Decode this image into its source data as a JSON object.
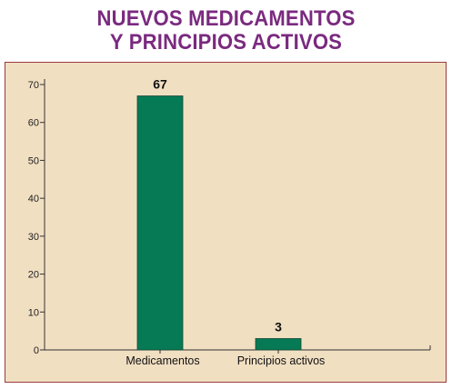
{
  "chart_data": {
    "type": "bar",
    "title": [
      "NUEVOS MEDICAMENTOS",
      "Y PRINCIPIOS ACTIVOS"
    ],
    "categories": [
      "Medicamentos",
      "Principios activos"
    ],
    "values": [
      67,
      3
    ],
    "data_labels": [
      "67",
      "3"
    ],
    "ylim": [
      0,
      70
    ],
    "yticks": [
      0,
      10,
      20,
      30,
      40,
      50,
      60,
      70
    ],
    "xlabel": "",
    "ylabel": "",
    "grid": false,
    "legend": "none",
    "colors": {
      "bar": "#057a54",
      "bar_edge": "#1a4a35",
      "panel_bg": "#f1dfc2",
      "panel_border": "#9a3b3b",
      "title": "#7a2a7f",
      "axis": "#333333"
    }
  }
}
